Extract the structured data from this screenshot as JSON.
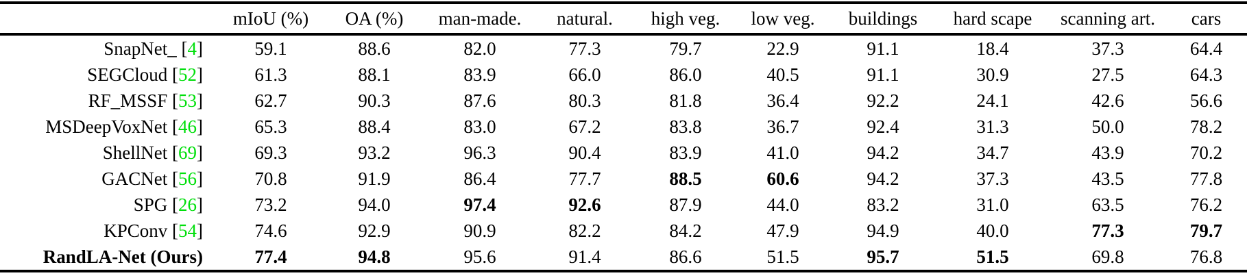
{
  "colors": {
    "citation_green": "#00df0b",
    "text": "#000000",
    "background": "#ffffff",
    "rule": "#000000"
  },
  "table": {
    "columns": [
      "",
      "mIoU (%)",
      "OA (%)",
      "man-made.",
      "natural.",
      "high veg.",
      "low veg.",
      "buildings",
      "hard scape",
      "scanning art.",
      "cars"
    ],
    "rows": [
      {
        "method": "SnapNet_",
        "citation": "4",
        "method_bold": false,
        "values": [
          "59.1",
          "88.6",
          "82.0",
          "77.3",
          "79.7",
          "22.9",
          "91.1",
          "18.4",
          "37.3",
          "64.4"
        ],
        "bold_indices": []
      },
      {
        "method": "SEGCloud",
        "citation": "52",
        "method_bold": false,
        "values": [
          "61.3",
          "88.1",
          "83.9",
          "66.0",
          "86.0",
          "40.5",
          "91.1",
          "30.9",
          "27.5",
          "64.3"
        ],
        "bold_indices": []
      },
      {
        "method": "RF_MSSF",
        "citation": "53",
        "method_bold": false,
        "values": [
          "62.7",
          "90.3",
          "87.6",
          "80.3",
          "81.8",
          "36.4",
          "92.2",
          "24.1",
          "42.6",
          "56.6"
        ],
        "bold_indices": []
      },
      {
        "method": "MSDeepVoxNet",
        "citation": "46",
        "method_bold": false,
        "values": [
          "65.3",
          "88.4",
          "83.0",
          "67.2",
          "83.8",
          "36.7",
          "92.4",
          "31.3",
          "50.0",
          "78.2"
        ],
        "bold_indices": []
      },
      {
        "method": "ShellNet",
        "citation": "69",
        "method_bold": false,
        "values": [
          "69.3",
          "93.2",
          "96.3",
          "90.4",
          "83.9",
          "41.0",
          "94.2",
          "34.7",
          "43.9",
          "70.2"
        ],
        "bold_indices": []
      },
      {
        "method": "GACNet",
        "citation": "56",
        "method_bold": false,
        "values": [
          "70.8",
          "91.9",
          "86.4",
          "77.7",
          "88.5",
          "60.6",
          "94.2",
          "37.3",
          "43.5",
          "77.8"
        ],
        "bold_indices": [
          4,
          5
        ]
      },
      {
        "method": "SPG",
        "citation": "26",
        "method_bold": false,
        "values": [
          "73.2",
          "94.0",
          "97.4",
          "92.6",
          "87.9",
          "44.0",
          "83.2",
          "31.0",
          "63.5",
          "76.2"
        ],
        "bold_indices": [
          2,
          3
        ]
      },
      {
        "method": "KPConv",
        "citation": "54",
        "method_bold": false,
        "values": [
          "74.6",
          "92.9",
          "90.9",
          "82.2",
          "84.2",
          "47.9",
          "94.9",
          "40.0",
          "77.3",
          "79.7"
        ],
        "bold_indices": [
          8,
          9
        ]
      },
      {
        "method": "RandLA-Net (Ours)",
        "citation": null,
        "method_bold": true,
        "values": [
          "77.4",
          "94.8",
          "95.6",
          "91.4",
          "86.6",
          "51.5",
          "95.7",
          "51.5",
          "69.8",
          "76.8"
        ],
        "bold_indices": [
          0,
          1,
          6,
          7
        ]
      }
    ]
  }
}
